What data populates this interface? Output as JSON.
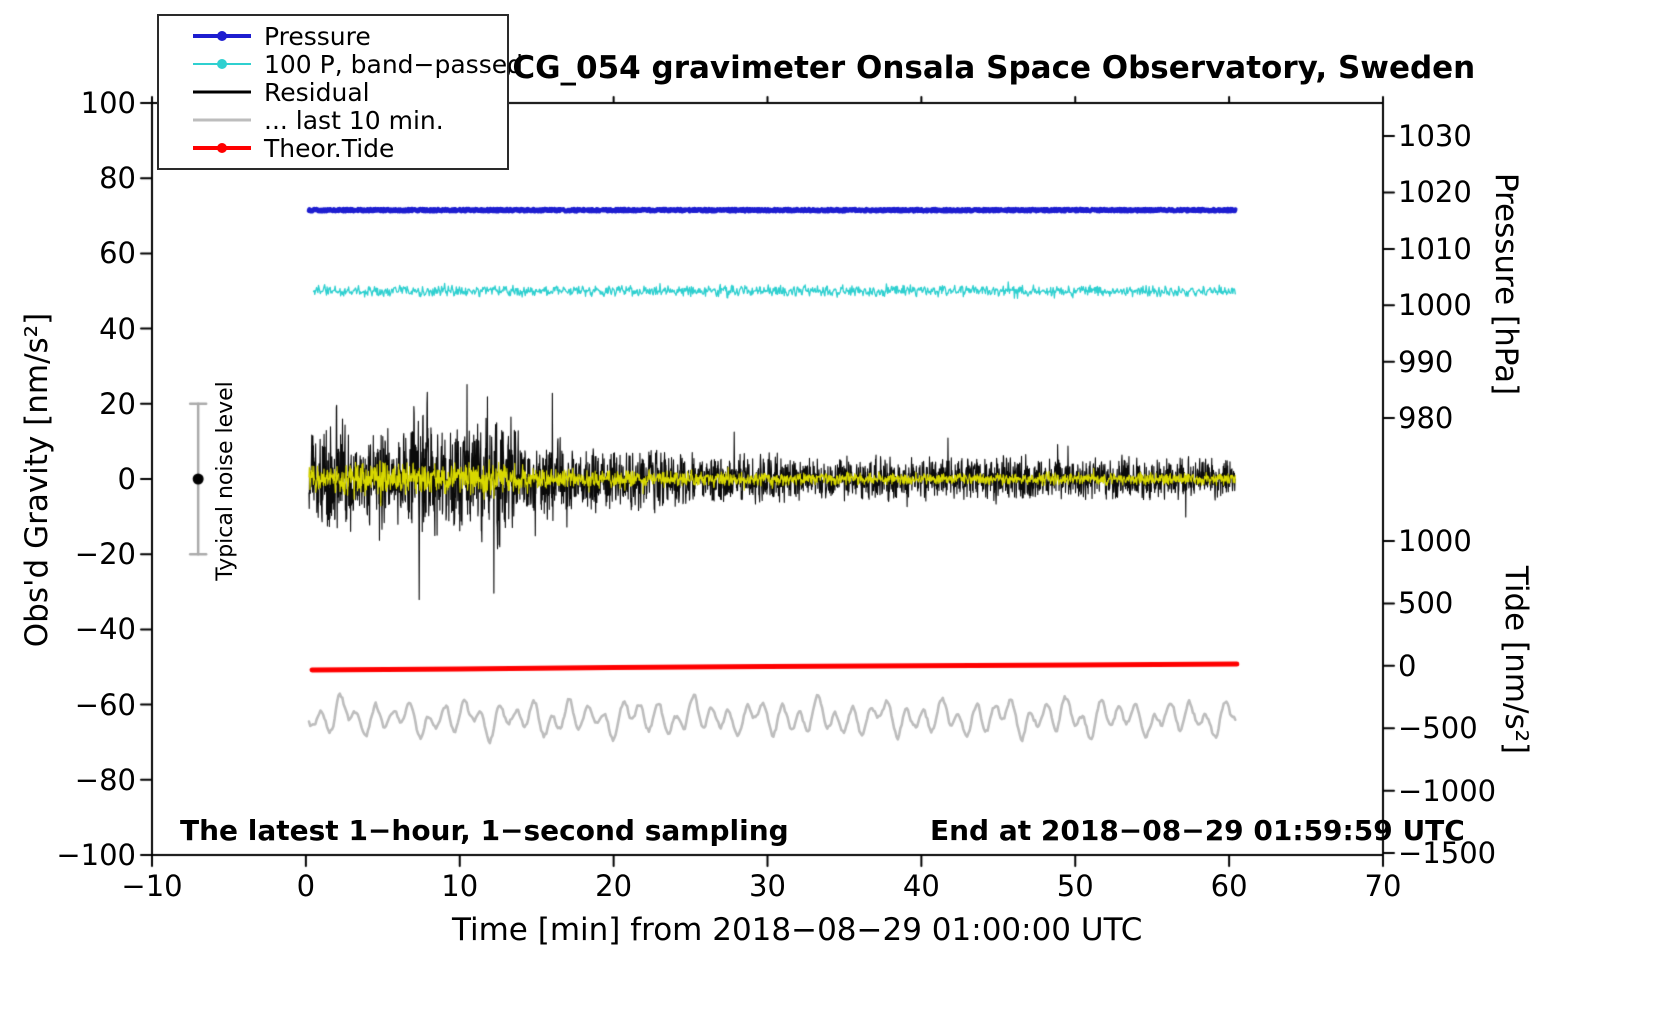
{
  "title": "SCG_054 gravimeter Onsala Space Observatory, Sweden",
  "annotations": {
    "sampling_note": "The latest 1−hour, 1−second sampling",
    "end_note": "End at 2018−08−29 01:59:59 UTC",
    "noise_label": "Typical noise level"
  },
  "legend": {
    "items": [
      {
        "label": "Pressure",
        "color": "#1d1dd0",
        "line_width": 4,
        "marker": true
      },
      {
        "label": "100 P, band−passed",
        "color": "#2fd0d0",
        "line_width": 2,
        "marker": true
      },
      {
        "label": "Residual",
        "color": "#000000",
        "line_width": 3,
        "marker": false
      },
      {
        "label": "... last 10 min.",
        "color": "#bdbdbd",
        "line_width": 3,
        "marker": false
      },
      {
        "label": "Theor.Tide",
        "color": "#ff0000",
        "line_width": 4,
        "marker": true
      }
    ]
  },
  "chart_data": {
    "type": "line",
    "title": "SCG_054 gravimeter Onsala Space Observatory, Sweden",
    "xlabel": "Time [min] from 2018−08−29 01:00:00 UTC",
    "ylabel_left": "Obs'd Gravity [nm/s²]",
    "ylabel_right_pressure": "Pressure [hPa]",
    "ylabel_right_tide": "Tide [nm/s²]",
    "xlim": [
      -10,
      70
    ],
    "ylim_gravity": [
      -100,
      100
    ],
    "grid": false,
    "legend_position": "top-left",
    "x_tick_values": [
      -10,
      0,
      10,
      20,
      30,
      40,
      50,
      60,
      70
    ],
    "x_tick_labels": [
      "−10",
      "0",
      "10",
      "20",
      "30",
      "40",
      "50",
      "60",
      "70"
    ],
    "gravity_tick_values": [
      100,
      80,
      60,
      40,
      20,
      0,
      -20,
      -40,
      -60,
      -80,
      -100
    ],
    "gravity_tick_labels": [
      "100",
      "80",
      "60",
      "40",
      "20",
      "0",
      "−20",
      "−40",
      "−60",
      "−80",
      "−100"
    ],
    "pressure_axis": {
      "tick_values": [
        1030,
        1020,
        1010,
        1000,
        990,
        980
      ],
      "tick_labels": [
        "1030",
        "1020",
        "1010",
        "1000",
        "990",
        "980"
      ],
      "gravity_per_hpa": 1.5,
      "gravity_offset": -1453.8
    },
    "tide_axis": {
      "tick_values": [
        1000,
        500,
        0,
        -500,
        -1000,
        -1500
      ],
      "tick_labels": [
        "1000",
        "500",
        "0",
        "−500",
        "−1000",
        "−1500"
      ],
      "gravity_per_unit": 0.0332,
      "gravity_offset": -49.7
    },
    "noise_bar": {
      "x_min": -7,
      "gravity_center": 0,
      "gravity_half_range": 20
    },
    "series": [
      {
        "id": "residual_last10",
        "name": "... last 10 min.",
        "color": "#bdbdbd",
        "width": 2.6,
        "kind": "smooth",
        "x_start": 0.2,
        "x_end": 60.4,
        "baseline_gravity": -63.5,
        "amplitude": 5,
        "points_per_min": 12,
        "seed": 21
      },
      {
        "id": "theor_tide",
        "name": "Theor.Tide",
        "color": "#ff0000",
        "width": 5,
        "kind": "points",
        "x": [
          0.4,
          10,
          20,
          30,
          40,
          50,
          60.5
        ],
        "gravity": [
          -50.8,
          -50.5,
          -50.15,
          -49.9,
          -49.65,
          -49.45,
          -49.2
        ],
        "tide_values_nms2": [
          -33,
          -24,
          -14,
          -6,
          2,
          8,
          15
        ]
      },
      {
        "id": "pressure",
        "name": "Pressure",
        "color": "#1d1dd0",
        "width": 4.5,
        "kind": "flat",
        "x_start": 0.2,
        "x_end": 60.4,
        "baseline_gravity": 71.5,
        "approx_value_hpa": 1016.5,
        "noise_amp": 0.3,
        "points_per_min": 30,
        "seed": 5
      },
      {
        "id": "pressure_bandpassed",
        "name": "100 P, band−passed",
        "color": "#2fd0d0",
        "width": 1.3,
        "kind": "noise",
        "x_start": 0.5,
        "x_end": 60.4,
        "baseline_gravity": 50,
        "amplitude_envelope": [
          [
            0.5,
            1.8
          ],
          [
            60.4,
            1.8
          ]
        ],
        "points_per_min": 25,
        "seed": 7
      },
      {
        "id": "residual",
        "name": "Residual",
        "color": "#0a0a0a",
        "width": 1.1,
        "kind": "noise",
        "x_start": 0.2,
        "x_end": 60.4,
        "baseline_gravity": 0,
        "amplitude_envelope": [
          [
            0.2,
            12
          ],
          [
            1,
            17
          ],
          [
            2,
            21
          ],
          [
            3,
            14
          ],
          [
            4,
            13
          ],
          [
            5,
            16
          ],
          [
            6,
            14
          ],
          [
            7,
            19
          ],
          [
            8,
            22
          ],
          [
            9,
            15
          ],
          [
            10,
            19
          ],
          [
            11,
            15
          ],
          [
            12,
            21
          ],
          [
            13,
            23
          ],
          [
            14,
            13
          ],
          [
            15,
            10
          ],
          [
            16,
            15
          ],
          [
            17,
            13
          ],
          [
            18,
            9.5
          ],
          [
            20,
            8.5
          ],
          [
            23,
            9.5
          ],
          [
            26,
            8
          ],
          [
            30,
            8
          ],
          [
            34,
            6.5
          ],
          [
            38,
            7
          ],
          [
            42,
            6.5
          ],
          [
            46,
            7.5
          ],
          [
            50,
            6.5
          ],
          [
            55,
            6.5
          ],
          [
            60.4,
            6.5
          ]
        ],
        "points_per_min": 55,
        "seed": 3
      },
      {
        "id": "residual_bandpassed",
        "name": "Residual, band−passed (yellow)",
        "color": "#d8d800",
        "width": 1.1,
        "kind": "noise",
        "x_start": 0.2,
        "x_end": 60.4,
        "baseline_gravity": 0,
        "amplitude_envelope": [
          [
            0.2,
            5
          ],
          [
            3,
            5.5
          ],
          [
            8,
            5
          ],
          [
            13,
            5.5
          ],
          [
            15,
            3.5
          ],
          [
            18,
            3
          ],
          [
            22,
            2.6
          ],
          [
            28,
            2.2
          ],
          [
            35,
            2
          ],
          [
            45,
            1.9
          ],
          [
            60.4,
            1.9
          ]
        ],
        "points_per_min": 45,
        "seed": 11
      }
    ]
  }
}
